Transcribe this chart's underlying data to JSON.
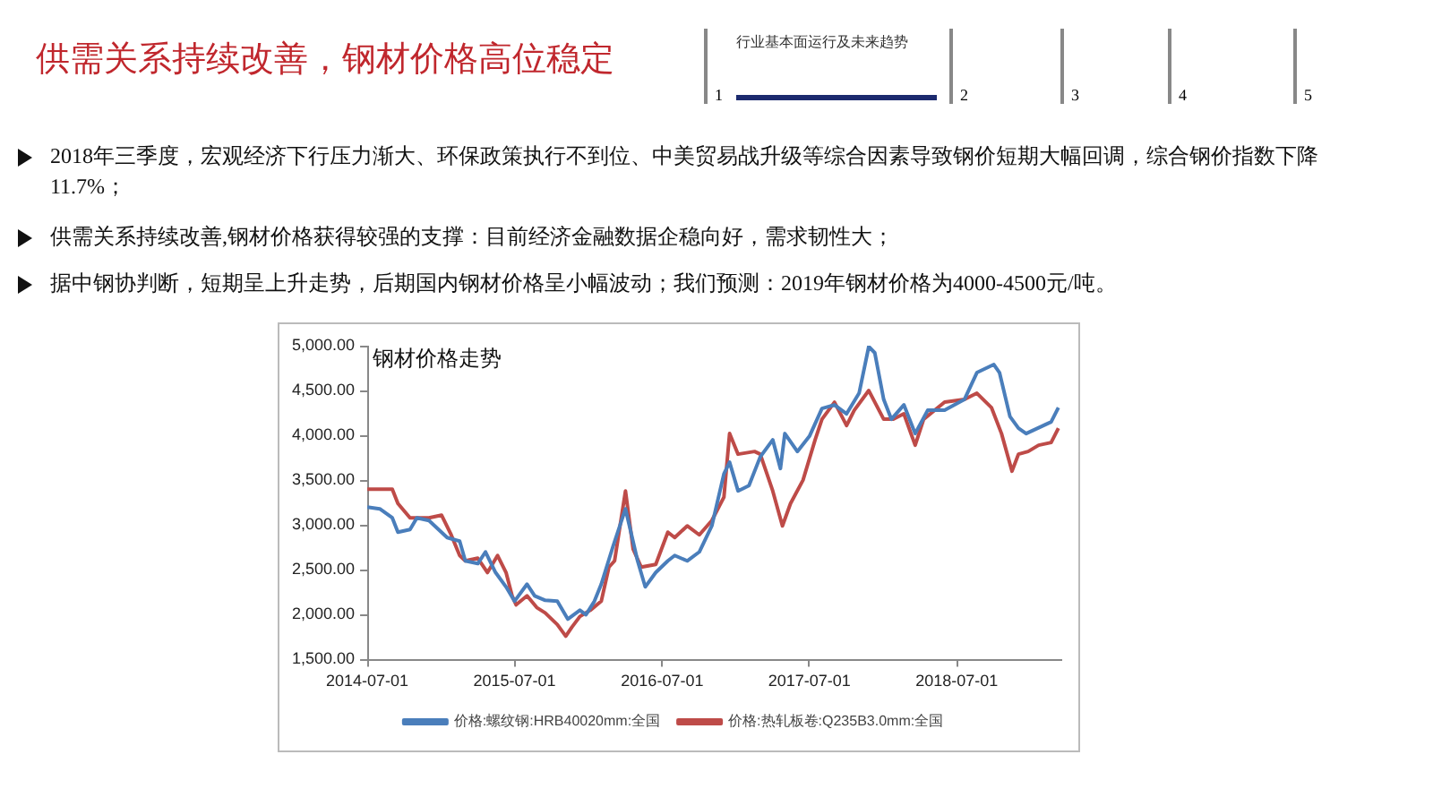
{
  "chart_data": {
    "type": "line",
    "title": "供需关系持续改善，钢材价格高位稳定",
    "subtitle": "钢材价格走势",
    "annotations": [
      "行业基本面运行及未来趋势",
      "1",
      "2",
      "3",
      "4",
      "5",
      "2018年三季度，宏观经济下行压力渐大、环保政策执行不到位、中美贸易战升级等综合因素导致钢价短期大幅回调，综合钢价指数下降11.7%；",
      "供需关系持续改善,钢材价格获得较强的支撑：目前经济金融数据企稳向好，需求韧性大；",
      "据中钢协判断，短期呈上升走势，后期国内钢材价格呈小幅波动；我们预测：2019年钢材价格为4000-4500元/吨。"
    ],
    "xlim": [
      "2014-07-01",
      "2019-03-15"
    ],
    "xticks": [
      "2014-07-01",
      "2015-07-01",
      "2016-07-01",
      "2017-07-01",
      "2018-07-01"
    ],
    "ylim": [
      1500,
      5000
    ],
    "yticks": [
      {
        "value": 1500,
        "label": "1,500.00"
      },
      {
        "value": 2000,
        "label": "2,000.00"
      },
      {
        "value": 2500,
        "label": "2,500.00"
      },
      {
        "value": 3000,
        "label": "3,000.00"
      },
      {
        "value": 3500,
        "label": "3,500.00"
      },
      {
        "value": 4000,
        "label": "4,000.00"
      },
      {
        "value": 4500,
        "label": "4,500.00"
      },
      {
        "value": 5000,
        "label": "5,000.00"
      }
    ],
    "grid": false,
    "legend": "bottom",
    "marker": "none",
    "line_style": "solid",
    "series": [
      {
        "name": "价格:螺纹钢:HRB40020mm:全国",
        "color": "#4a7ebb",
        "x": [
          "2014-07-01",
          "2014-08-01",
          "2014-09-01",
          "2014-09-15",
          "2014-10-15",
          "2014-11-01",
          "2014-12-01",
          "2015-01-15",
          "2015-02-15",
          "2015-03-01",
          "2015-04-01",
          "2015-04-20",
          "2015-05-15",
          "2015-06-10",
          "2015-07-01",
          "2015-08-01",
          "2015-08-20",
          "2015-09-15",
          "2015-10-15",
          "2015-11-10",
          "2015-12-10",
          "2015-12-25",
          "2016-01-15",
          "2016-02-01",
          "2016-03-01",
          "2016-04-01",
          "2016-05-01",
          "2016-05-20",
          "2016-06-15",
          "2016-07-15",
          "2016-08-01",
          "2016-09-01",
          "2016-10-01",
          "2016-11-01",
          "2016-12-01",
          "2016-12-15",
          "2017-01-05",
          "2017-02-01",
          "2017-03-01",
          "2017-04-01",
          "2017-04-20",
          "2017-05-01",
          "2017-06-01",
          "2017-07-01",
          "2017-08-01",
          "2017-09-01",
          "2017-10-01",
          "2017-11-01",
          "2017-11-25",
          "2017-12-10",
          "2018-01-01",
          "2018-01-20",
          "2018-02-20",
          "2018-03-20",
          "2018-04-20",
          "2018-06-01",
          "2018-07-20",
          "2018-08-20",
          "2018-10-01",
          "2018-10-15",
          "2018-11-10",
          "2018-12-01",
          "2018-12-20",
          "2019-02-01",
          "2019-02-20",
          "2019-03-10"
        ],
        "values": [
          3200,
          3180,
          3080,
          2920,
          2950,
          3080,
          3050,
          2860,
          2820,
          2600,
          2570,
          2700,
          2470,
          2310,
          2150,
          2340,
          2210,
          2160,
          2150,
          1950,
          2050,
          2000,
          2150,
          2340,
          2760,
          3180,
          2600,
          2310,
          2470,
          2600,
          2660,
          2600,
          2700,
          2990,
          3570,
          3700,
          3380,
          3440,
          3760,
          3950,
          3630,
          4020,
          3820,
          3990,
          4300,
          4340,
          4240,
          4470,
          4990,
          4920,
          4400,
          4180,
          4340,
          4020,
          4280,
          4280,
          4400,
          4700,
          4790,
          4700,
          4210,
          4080,
          4020,
          4110,
          4150,
          4310
        ]
      },
      {
        "name": "价格:热轧板卷:Q235B3.0mm:全国",
        "color": "#be4b48",
        "x": [
          "2014-07-01",
          "2014-09-01",
          "2014-09-15",
          "2014-10-15",
          "2014-11-01",
          "2014-12-01",
          "2015-01-01",
          "2015-01-25",
          "2015-02-15",
          "2015-03-01",
          "2015-04-01",
          "2015-04-25",
          "2015-05-20",
          "2015-06-10",
          "2015-06-25",
          "2015-07-05",
          "2015-08-01",
          "2015-08-25",
          "2015-09-15",
          "2015-10-15",
          "2015-11-05",
          "2015-11-20",
          "2015-12-10",
          "2016-01-05",
          "2016-02-01",
          "2016-02-20",
          "2016-03-05",
          "2016-04-01",
          "2016-04-20",
          "2016-05-10",
          "2016-06-15",
          "2016-07-15",
          "2016-08-01",
          "2016-09-01",
          "2016-10-01",
          "2016-11-01",
          "2016-12-01",
          "2016-12-15",
          "2017-01-05",
          "2017-02-15",
          "2017-03-01",
          "2017-04-01",
          "2017-04-25",
          "2017-05-15",
          "2017-06-15",
          "2017-07-15",
          "2017-08-01",
          "2017-09-01",
          "2017-10-01",
          "2017-10-20",
          "2017-11-25",
          "2018-01-01",
          "2018-01-25",
          "2018-02-20",
          "2018-03-20",
          "2018-04-10",
          "2018-06-01",
          "2018-07-20",
          "2018-08-20",
          "2018-09-25",
          "2018-10-20",
          "2018-11-15",
          "2018-12-01",
          "2018-12-25",
          "2019-01-20",
          "2019-02-20",
          "2019-03-10"
        ],
        "values": [
          3400,
          3400,
          3240,
          3080,
          3080,
          3080,
          3110,
          2890,
          2660,
          2600,
          2630,
          2470,
          2660,
          2470,
          2210,
          2110,
          2210,
          2080,
          2020,
          1890,
          1760,
          1860,
          1980,
          2050,
          2150,
          2530,
          2600,
          3380,
          2730,
          2530,
          2560,
          2920,
          2860,
          2990,
          2890,
          3050,
          3310,
          4020,
          3790,
          3820,
          3790,
          3380,
          2990,
          3240,
          3500,
          3950,
          4180,
          4370,
          4110,
          4280,
          4500,
          4180,
          4180,
          4240,
          3890,
          4180,
          4370,
          4400,
          4470,
          4310,
          4020,
          3600,
          3790,
          3820,
          3890,
          3920,
          4080
        ]
      }
    ]
  }
}
